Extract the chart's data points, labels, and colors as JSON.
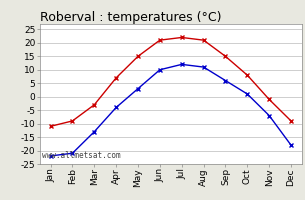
{
  "months": [
    "Jan",
    "Feb",
    "Mar",
    "Apr",
    "May",
    "Jun",
    "Jul",
    "Aug",
    "Sep",
    "Oct",
    "Nov",
    "Dec"
  ],
  "max_temps": [
    -11,
    -9,
    -3,
    7,
    15,
    21,
    22,
    21,
    15,
    8,
    -1,
    -9
  ],
  "min_temps": [
    -22,
    -21,
    -13,
    -4,
    3,
    10,
    12,
    11,
    6,
    1,
    -7,
    -18
  ],
  "red_color": "#cc0000",
  "blue_color": "#0000cc",
  "title": "Roberval : temperatures (°C)",
  "ylim": [
    -25,
    27
  ],
  "yticks": [
    -25,
    -20,
    -15,
    -10,
    -5,
    0,
    5,
    10,
    15,
    20,
    25
  ],
  "watermark": "www.allmetsat.com",
  "bg_color": "#e8e8e0",
  "plot_bg": "#ffffff",
  "grid_color": "#bbbbbb",
  "title_fontsize": 9,
  "tick_fontsize": 6.5,
  "watermark_fontsize": 5.5,
  "marker_size": 3,
  "line_width": 1.0
}
